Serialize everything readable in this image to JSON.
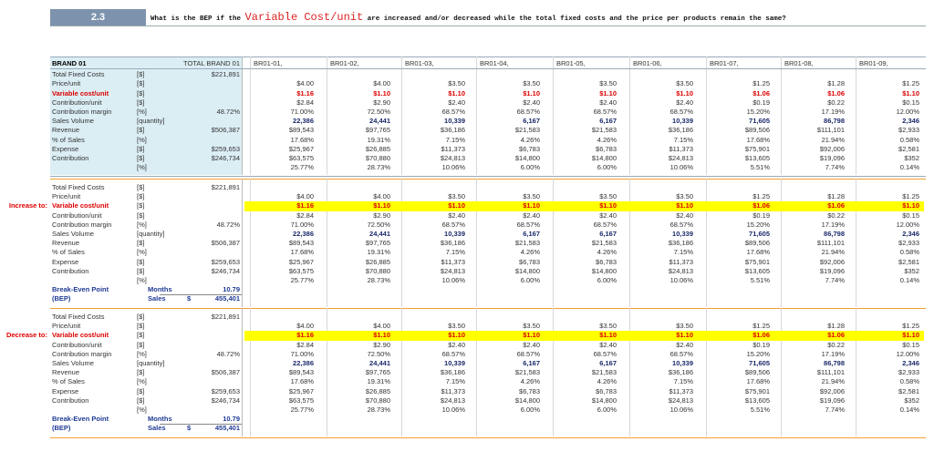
{
  "header": {
    "number": "2.3",
    "question_start": "What is the BEP if the",
    "question_highlight": "Variable Cost/unit",
    "question_end": "are increased and/or decreased while the total fixed costs and the price per products remain the same?"
  },
  "columns": {
    "label": "BRAND 01",
    "total": "TOTAL BRAND 01",
    "products": [
      "BR01-01,",
      "BR01-02,",
      "BR01-03,",
      "BR01-04,",
      "BR01-05,",
      "BR01-06,",
      "BR01-07,",
      "BR01-08,",
      "BR01-09,"
    ]
  },
  "blocks": [
    {
      "rows": [
        {
          "label": "Total Fixed Costs",
          "unit": "[$]",
          "total": "$221,891"
        },
        {
          "label": "Price/unit",
          "unit": "[$]",
          "values": [
            "$4.00",
            "$4.00",
            "$3.50",
            "$3.50",
            "$3.50",
            "$3.50",
            "$1.25",
            "$1.28",
            "$1.25"
          ]
        },
        {
          "label": "Variable cost/unit",
          "unit": "[$]",
          "values": [
            "$1.16",
            "$1.10",
            "$1.10",
            "$1.10",
            "$1.10",
            "$1.10",
            "$1.06",
            "$1.06",
            "$1.10"
          ]
        },
        {
          "label": "Contribution/unit",
          "unit": "[$]",
          "values": [
            "$2.84",
            "$2.90",
            "$2.40",
            "$2.40",
            "$2.40",
            "$2.40",
            "$0.19",
            "$0.22",
            "$0.15"
          ]
        },
        {
          "label": "Contribution margin",
          "unit": "[%]",
          "total": "48.72%",
          "values": [
            "71.00%",
            "72.50%",
            "68.57%",
            "68.57%",
            "68.57%",
            "68.57%",
            "15.20%",
            "17.19%",
            "12.00%"
          ]
        },
        {
          "label": "Sales Volume",
          "unit": "[quantity]",
          "values": [
            "22,386",
            "24,441",
            "10,339",
            "6,167",
            "6,167",
            "10,339",
            "71,605",
            "86,798",
            "2,346"
          ]
        },
        {
          "label": "Revenue",
          "unit": "[$]",
          "total": "$506,387",
          "values": [
            "$89,543",
            "$97,765",
            "$36,186",
            "$21,583",
            "$21,583",
            "$36,186",
            "$89,506",
            "$111,101",
            "$2,933"
          ]
        },
        {
          "label": "% of Sales",
          "unit": "[%]",
          "values": [
            "17.68%",
            "19.31%",
            "7.15%",
            "4.26%",
            "4.26%",
            "7.15%",
            "17.68%",
            "21.94%",
            "0.58%"
          ]
        },
        {
          "label": "Expense",
          "unit": "[$]",
          "total": "$259,653",
          "values": [
            "$25,967",
            "$26,885",
            "$11,373",
            "$6,783",
            "$6,783",
            "$11,373",
            "$75,901",
            "$92,006",
            "$2,581"
          ]
        },
        {
          "label": "Contribution",
          "unit": "[$]",
          "total": "$246,734",
          "values": [
            "$63,575",
            "$70,880",
            "$24,813",
            "$14,800",
            "$14,800",
            "$24,813",
            "$13,605",
            "$19,096",
            "$352"
          ]
        },
        {
          "unit": "[%]",
          "values": [
            "25.77%",
            "28.73%",
            "10.06%",
            "6.00%",
            "6.00%",
            "10.06%",
            "5.51%",
            "7.74%",
            "0.14%"
          ]
        }
      ]
    },
    {
      "side_label": "Increase to:",
      "rows": [
        {
          "label": "Total Fixed Costs",
          "unit": "[$]",
          "total": "$221,891"
        },
        {
          "label": "Price/unit",
          "unit": "[$]",
          "values": [
            "$4.00",
            "$4.00",
            "$3.50",
            "$3.50",
            "$3.50",
            "$3.50",
            "$1.25",
            "$1.28",
            "$1.25"
          ]
        },
        {
          "label": "Variable cost/unit",
          "unit": "[$]",
          "values": [
            "$1.16",
            "$1.10",
            "$1.10",
            "$1.10",
            "$1.10",
            "$1.10",
            "$1.06",
            "$1.06",
            "$1.10"
          ]
        },
        {
          "label": "Contribution/unit",
          "unit": "[$]",
          "values": [
            "$2.84",
            "$2.90",
            "$2.40",
            "$2.40",
            "$2.40",
            "$2.40",
            "$0.19",
            "$0.22",
            "$0.15"
          ]
        },
        {
          "label": "Contribution margin",
          "unit": "[%]",
          "total": "48.72%",
          "values": [
            "71.00%",
            "72.50%",
            "68.57%",
            "68.57%",
            "68.57%",
            "68.57%",
            "15.20%",
            "17.19%",
            "12.00%"
          ]
        },
        {
          "label": "Sales Volume",
          "unit": "[quantity]",
          "values": [
            "22,386",
            "24,441",
            "10,339",
            "6,167",
            "6,167",
            "10,339",
            "71,605",
            "86,798",
            "2,346"
          ]
        },
        {
          "label": "Revenue",
          "unit": "[$]",
          "total": "$506,387",
          "values": [
            "$89,543",
            "$97,765",
            "$36,186",
            "$21,583",
            "$21,583",
            "$36,186",
            "$89,506",
            "$111,101",
            "$2,933"
          ]
        },
        {
          "label": "% of Sales",
          "unit": "[%]",
          "values": [
            "17.68%",
            "19.31%",
            "7.15%",
            "4.26%",
            "4.26%",
            "7.15%",
            "17.68%",
            "21.94%",
            "0.58%"
          ]
        },
        {
          "label": "Expense",
          "unit": "[$]",
          "total": "$259,653",
          "values": [
            "$25,967",
            "$26,885",
            "$11,373",
            "$6,783",
            "$6,783",
            "$11,373",
            "$75,901",
            "$92,006",
            "$2,581"
          ]
        },
        {
          "label": "Contribution",
          "unit": "[$]",
          "total": "$246,734",
          "values": [
            "$63,575",
            "$70,880",
            "$24,813",
            "$14,800",
            "$14,800",
            "$24,813",
            "$13,605",
            "$19,096",
            "$352"
          ]
        },
        {
          "unit": "[%]",
          "values": [
            "25.77%",
            "28.73%",
            "10.06%",
            "6.00%",
            "6.00%",
            "10.06%",
            "5.51%",
            "7.74%",
            "0.14%"
          ]
        }
      ],
      "bep": {
        "label1": "Break-Even Point",
        "label2": "(BEP)",
        "months_label": "Months",
        "months": "10.79",
        "sales_label": "Sales",
        "currency": "$",
        "sales": "455,401"
      }
    },
    {
      "side_label": "Decrease to:",
      "rows": [
        {
          "label": "Total Fixed Costs",
          "unit": "[$]",
          "total": "$221,891"
        },
        {
          "label": "Price/unit",
          "unit": "[$]",
          "values": [
            "$4.00",
            "$4.00",
            "$3.50",
            "$3.50",
            "$3.50",
            "$3.50",
            "$1.25",
            "$1.28",
            "$1.25"
          ]
        },
        {
          "label": "Variable cost/unit",
          "unit": "[$]",
          "values": [
            "$1.16",
            "$1.10",
            "$1.10",
            "$1.10",
            "$1.10",
            "$1.10",
            "$1.06",
            "$1.06",
            "$1.10"
          ]
        },
        {
          "label": "Contribution/unit",
          "unit": "[$]",
          "values": [
            "$2.84",
            "$2.90",
            "$2.40",
            "$2.40",
            "$2.40",
            "$2.40",
            "$0.19",
            "$0.22",
            "$0.15"
          ]
        },
        {
          "label": "Contribution margin",
          "unit": "[%]",
          "total": "48.72%",
          "values": [
            "71.00%",
            "72.50%",
            "68.57%",
            "68.57%",
            "68.57%",
            "68.57%",
            "15.20%",
            "17.19%",
            "12.00%"
          ]
        },
        {
          "label": "Sales Volume",
          "unit": "[quantity]",
          "values": [
            "22,386",
            "24,441",
            "10,339",
            "6,167",
            "6,167",
            "10,339",
            "71,605",
            "86,798",
            "2,346"
          ]
        },
        {
          "label": "Revenue",
          "unit": "[$]",
          "total": "$506,387",
          "values": [
            "$89,543",
            "$97,765",
            "$36,186",
            "$21,583",
            "$21,583",
            "$36,186",
            "$89,506",
            "$111,101",
            "$2,933"
          ]
        },
        {
          "label": "% of Sales",
          "unit": "[%]",
          "values": [
            "17.68%",
            "19.31%",
            "7.15%",
            "4.26%",
            "4.26%",
            "7.15%",
            "17.68%",
            "21.94%",
            "0.58%"
          ]
        },
        {
          "label": "Expense",
          "unit": "[$]",
          "total": "$259,653",
          "values": [
            "$25,967",
            "$26,885",
            "$11,373",
            "$6,783",
            "$6,783",
            "$11,373",
            "$75,901",
            "$92,006",
            "$2,581"
          ]
        },
        {
          "label": "Contribution",
          "unit": "[$]",
          "total": "$246,734",
          "values": [
            "$63,575",
            "$70,880",
            "$24,813",
            "$14,800",
            "$14,800",
            "$24,813",
            "$13,605",
            "$19,096",
            "$352"
          ]
        },
        {
          "unit": "[%]",
          "values": [
            "25.77%",
            "28.73%",
            "10.06%",
            "6.00%",
            "6.00%",
            "10.06%",
            "5.51%",
            "7.74%",
            "0.14%"
          ]
        }
      ],
      "bep": {
        "label1": "Break-Even Point",
        "label2": "(BEP)",
        "months_label": "Months",
        "months": "10.79",
        "sales_label": "Sales",
        "currency": "$",
        "sales": "455,401"
      }
    }
  ]
}
